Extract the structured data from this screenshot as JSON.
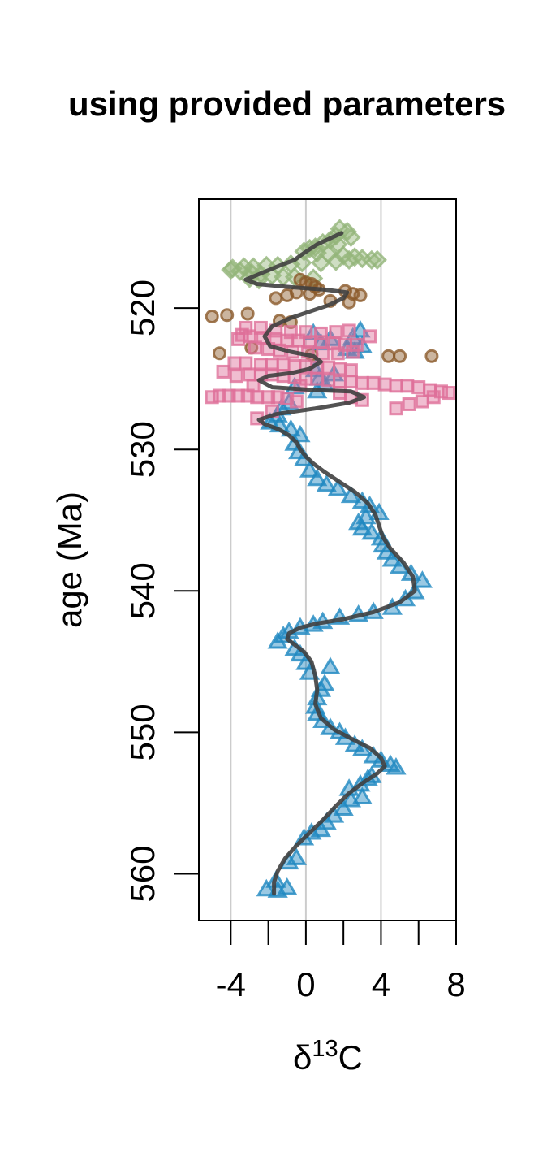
{
  "chart_data": {
    "type": "scatter",
    "title": "using provided parameters",
    "xlabel": {
      "prefix": "δ",
      "sup": "13",
      "suffix": "C"
    },
    "ylabel": "age (Ma)",
    "xlim": [
      -5.7,
      8
    ],
    "ylim": [
      512.3,
      563.3
    ],
    "y_reversed": true,
    "xticks": [
      -4,
      -2,
      0,
      2,
      4,
      6,
      8
    ],
    "xtick_labels": [
      "-4",
      "",
      "0",
      "",
      "4",
      "",
      "8"
    ],
    "yticks": [
      520,
      530,
      540,
      550,
      560
    ],
    "ytick_labels": [
      "520",
      "530",
      "540",
      "550",
      "560"
    ],
    "grid": {
      "vertical_at": [
        -4,
        0,
        4
      ],
      "color": "#cccccc"
    },
    "legend": "none",
    "series": [
      {
        "marker": "diamond",
        "color": "#94b57b",
        "points": [
          [
            1.8,
            514.4
          ],
          [
            2.2,
            514.6
          ],
          [
            1.6,
            514.9
          ],
          [
            2.4,
            515.0
          ],
          [
            1.3,
            515.2
          ],
          [
            0.9,
            515.4
          ],
          [
            1.7,
            515.5
          ],
          [
            0.5,
            515.7
          ],
          [
            0.2,
            515.8
          ],
          [
            -0.1,
            516.0
          ],
          [
            0.6,
            516.1
          ],
          [
            1.2,
            516.2
          ],
          [
            2.0,
            516.3
          ],
          [
            2.6,
            516.4
          ],
          [
            3.0,
            516.5
          ],
          [
            3.5,
            516.6
          ],
          [
            2.3,
            516.6
          ],
          [
            1.6,
            516.7
          ],
          [
            0.8,
            516.8
          ],
          [
            -0.2,
            516.8
          ],
          [
            -0.8,
            516.9
          ],
          [
            -1.5,
            517.0
          ],
          [
            -2.1,
            517.0
          ],
          [
            -2.8,
            517.1
          ],
          [
            -3.3,
            517.1
          ],
          [
            -3.9,
            517.2
          ],
          [
            -4.0,
            517.3
          ],
          [
            -3.5,
            517.4
          ],
          [
            -2.9,
            517.5
          ],
          [
            -2.4,
            517.6
          ],
          [
            -1.8,
            517.7
          ],
          [
            -1.2,
            517.8
          ],
          [
            -0.6,
            517.8
          ],
          [
            0.4,
            517.9
          ],
          [
            3.8,
            516.6
          ],
          [
            -3.0,
            517.9
          ],
          [
            -2.5,
            518.0
          ]
        ]
      },
      {
        "marker": "circle",
        "color": "#8b5a2b",
        "points": [
          [
            -0.3,
            518.0
          ],
          [
            0.0,
            518.2
          ],
          [
            0.3,
            518.3
          ],
          [
            0.5,
            518.5
          ],
          [
            0.7,
            518.7
          ],
          [
            -0.5,
            518.9
          ],
          [
            0.2,
            519.0
          ],
          [
            2.1,
            518.8
          ],
          [
            2.5,
            519.0
          ],
          [
            2.9,
            519.1
          ],
          [
            -1.6,
            519.3
          ],
          [
            -1.0,
            519.1
          ],
          [
            1.3,
            519.5
          ],
          [
            2.3,
            519.6
          ],
          [
            -5.0,
            520.6
          ],
          [
            -4.2,
            520.5
          ],
          [
            -3.1,
            520.4
          ],
          [
            -1.4,
            520.9
          ],
          [
            -0.8,
            521.0
          ],
          [
            -4.6,
            523.2
          ],
          [
            0.3,
            523.3
          ],
          [
            4.4,
            523.4
          ],
          [
            5.0,
            523.4
          ],
          [
            6.7,
            523.4
          ],
          [
            -2.9,
            522.8
          ]
        ]
      },
      {
        "marker": "triangle",
        "color": "#1f88c0",
        "points": [
          [
            -1.5,
            561.2
          ],
          [
            -2.1,
            561.1
          ],
          [
            -1.0,
            561.0
          ],
          [
            -1.6,
            560.5
          ],
          [
            -0.9,
            559.2
          ],
          [
            -0.5,
            558.9
          ],
          [
            -0.1,
            557.5
          ],
          [
            0.3,
            557.1
          ],
          [
            0.8,
            556.9
          ],
          [
            1.1,
            556.4
          ],
          [
            1.5,
            555.9
          ],
          [
            2.0,
            555.4
          ],
          [
            2.4,
            554.8
          ],
          [
            3.0,
            554.6
          ],
          [
            2.3,
            554.0
          ],
          [
            2.9,
            553.7
          ],
          [
            3.3,
            553.3
          ],
          [
            3.5,
            553.1
          ],
          [
            4.5,
            552.3
          ],
          [
            4.8,
            552.5
          ],
          [
            4.0,
            552.0
          ],
          [
            3.6,
            551.7
          ],
          [
            3.0,
            551.2
          ],
          [
            2.6,
            550.9
          ],
          [
            2.1,
            550.4
          ],
          [
            1.8,
            550.0
          ],
          [
            1.3,
            549.7
          ],
          [
            0.9,
            549.2
          ],
          [
            0.6,
            548.7
          ],
          [
            0.5,
            548.2
          ],
          [
            0.6,
            547.6
          ],
          [
            0.8,
            547.0
          ],
          [
            1.0,
            546.6
          ],
          [
            1.3,
            545.4
          ],
          [
            0.2,
            545.8
          ],
          [
            0.0,
            545.1
          ],
          [
            -0.3,
            544.5
          ],
          [
            -0.6,
            544.1
          ],
          [
            -1.5,
            543.6
          ],
          [
            -1.2,
            543.2
          ],
          [
            -0.9,
            542.9
          ],
          [
            -0.3,
            542.6
          ],
          [
            0.4,
            542.4
          ],
          [
            0.9,
            542.2
          ],
          [
            1.8,
            541.9
          ],
          [
            2.8,
            541.7
          ],
          [
            3.6,
            541.5
          ],
          [
            4.6,
            541.2
          ],
          [
            5.3,
            540.6
          ],
          [
            5.8,
            540.1
          ],
          [
            6.2,
            539.3
          ],
          [
            5.6,
            538.8
          ],
          [
            5.0,
            538.3
          ],
          [
            4.6,
            537.8
          ],
          [
            4.3,
            537.3
          ],
          [
            4.1,
            536.8
          ],
          [
            4.0,
            536.3
          ],
          [
            3.5,
            535.9
          ],
          [
            3.0,
            535.6
          ],
          [
            2.8,
            535.2
          ],
          [
            3.2,
            534.8
          ],
          [
            3.9,
            534.5
          ],
          [
            3.4,
            534.0
          ],
          [
            3.0,
            533.7
          ],
          [
            2.4,
            533.3
          ],
          [
            1.7,
            532.8
          ],
          [
            1.1,
            532.5
          ],
          [
            0.6,
            532.1
          ],
          [
            0.2,
            531.5
          ],
          [
            -0.1,
            530.7
          ],
          [
            -0.4,
            530.2
          ],
          [
            -0.6,
            529.6
          ],
          [
            -0.3,
            529.0
          ],
          [
            -0.8,
            528.6
          ],
          [
            -1.4,
            528.3
          ],
          [
            -1.9,
            528.1
          ],
          [
            -1.5,
            527.6
          ],
          [
            -1.3,
            527.1
          ],
          [
            -0.9,
            526.7
          ],
          [
            0.6,
            525.9
          ],
          [
            1.0,
            525.4
          ],
          [
            0.7,
            525.0
          ],
          [
            -0.6,
            525.6
          ],
          [
            1.5,
            524.7
          ],
          [
            0.5,
            524.4
          ],
          [
            2.2,
            522.9
          ],
          [
            2.6,
            523.1
          ],
          [
            3.0,
            522.7
          ],
          [
            2.9,
            521.6
          ],
          [
            2.5,
            522.1
          ],
          [
            0.4,
            521.8
          ],
          [
            1.3,
            522.2
          ],
          [
            0.8,
            522.5
          ]
        ]
      },
      {
        "marker": "square",
        "color": "#de6f99",
        "points": [
          [
            -4.6,
            526.2
          ],
          [
            -4.1,
            526.2
          ],
          [
            -3.6,
            526.2
          ],
          [
            -3.1,
            526.2
          ],
          [
            -2.6,
            526.3
          ],
          [
            -2.0,
            526.3
          ],
          [
            -1.5,
            526.3
          ],
          [
            -1.0,
            526.4
          ],
          [
            -3.7,
            524.8
          ],
          [
            -3.0,
            524.7
          ],
          [
            -2.4,
            524.7
          ],
          [
            -1.8,
            524.7
          ],
          [
            -1.2,
            524.8
          ],
          [
            -0.6,
            524.9
          ],
          [
            0.0,
            525.0
          ],
          [
            0.6,
            525.0
          ],
          [
            1.2,
            525.1
          ],
          [
            1.8,
            525.2
          ],
          [
            2.4,
            525.2
          ],
          [
            3.0,
            525.3
          ],
          [
            3.6,
            525.3
          ],
          [
            4.2,
            525.4
          ],
          [
            4.8,
            525.5
          ],
          [
            5.4,
            525.5
          ],
          [
            6.0,
            525.6
          ],
          [
            6.6,
            525.8
          ],
          [
            7.2,
            525.9
          ],
          [
            7.6,
            526.0
          ],
          [
            6.8,
            526.3
          ],
          [
            6.2,
            526.6
          ],
          [
            5.5,
            526.8
          ],
          [
            4.8,
            527.1
          ],
          [
            -3.8,
            523.9
          ],
          [
            -3.2,
            523.9
          ],
          [
            -2.4,
            524.0
          ],
          [
            -1.8,
            524.0
          ],
          [
            -1.2,
            524.0
          ],
          [
            -0.6,
            524.1
          ],
          [
            0.0,
            524.1
          ],
          [
            0.6,
            524.2
          ],
          [
            1.2,
            524.2
          ],
          [
            1.8,
            524.3
          ],
          [
            2.4,
            524.4
          ],
          [
            -3.6,
            522.2
          ],
          [
            -3.0,
            522.0
          ],
          [
            -2.3,
            522.1
          ],
          [
            -1.6,
            522.2
          ],
          [
            -1.0,
            522.3
          ],
          [
            -0.4,
            522.3
          ],
          [
            0.2,
            522.4
          ],
          [
            0.8,
            522.4
          ],
          [
            1.5,
            522.5
          ],
          [
            2.1,
            522.6
          ],
          [
            2.7,
            522.6
          ],
          [
            -3.4,
            521.9
          ],
          [
            -2.7,
            522.8
          ],
          [
            -2.0,
            522.9
          ],
          [
            -1.4,
            523.0
          ],
          [
            -0.7,
            523.1
          ],
          [
            0.1,
            523.1
          ],
          [
            0.9,
            523.2
          ],
          [
            1.7,
            523.2
          ],
          [
            2.5,
            523.1
          ],
          [
            -3.2,
            521.4
          ],
          [
            -2.4,
            521.4
          ],
          [
            -1.6,
            521.6
          ],
          [
            -0.8,
            521.7
          ],
          [
            0.0,
            521.7
          ],
          [
            0.8,
            521.8
          ],
          [
            1.6,
            521.7
          ],
          [
            2.3,
            521.6
          ],
          [
            3.4,
            522.0
          ],
          [
            3.0,
            526.5
          ],
          [
            2.4,
            526.3
          ],
          [
            1.8,
            526.0
          ],
          [
            -0.5,
            526.6
          ],
          [
            -1.8,
            527.3
          ],
          [
            -2.6,
            527.8
          ],
          [
            -4.4,
            524.5
          ],
          [
            -2.8,
            525.5
          ],
          [
            -0.3,
            525.5
          ],
          [
            -5.0,
            526.3
          ]
        ]
      }
    ],
    "fit_line": {
      "color": "#404040",
      "points": [
        [
          1.9,
          514.7
        ],
        [
          0.6,
          515.5
        ],
        [
          -0.2,
          516.2
        ],
        [
          -0.6,
          516.6
        ],
        [
          -1.4,
          517.0
        ],
        [
          -2.3,
          517.5
        ],
        [
          -3.2,
          518.0
        ],
        [
          -2.6,
          518.3
        ],
        [
          -1.0,
          518.5
        ],
        [
          1.0,
          518.7
        ],
        [
          2.2,
          518.9
        ],
        [
          2.0,
          519.3
        ],
        [
          1.2,
          519.8
        ],
        [
          0.3,
          520.2
        ],
        [
          -0.8,
          520.7
        ],
        [
          -1.8,
          521.3
        ],
        [
          -2.2,
          522.0
        ],
        [
          -1.9,
          522.7
        ],
        [
          -0.8,
          523.1
        ],
        [
          0.4,
          523.4
        ],
        [
          0.8,
          523.8
        ],
        [
          0.2,
          524.3
        ],
        [
          -0.8,
          524.6
        ],
        [
          -2.0,
          524.8
        ],
        [
          -2.5,
          525.1
        ],
        [
          -1.8,
          525.6
        ],
        [
          0.5,
          525.8
        ],
        [
          2.4,
          525.9
        ],
        [
          3.1,
          526.3
        ],
        [
          2.3,
          526.7
        ],
        [
          0.5,
          527.1
        ],
        [
          -1.6,
          527.5
        ],
        [
          -2.5,
          527.9
        ],
        [
          -2.2,
          528.2
        ],
        [
          -1.4,
          528.6
        ],
        [
          -0.9,
          529.0
        ],
        [
          -0.5,
          529.5
        ],
        [
          -0.3,
          530.0
        ],
        [
          0.0,
          530.5
        ],
        [
          0.4,
          531.0
        ],
        [
          1.0,
          531.6
        ],
        [
          1.8,
          532.3
        ],
        [
          2.6,
          533.0
        ],
        [
          3.3,
          533.8
        ],
        [
          3.7,
          534.6
        ],
        [
          3.9,
          535.4
        ],
        [
          4.1,
          536.2
        ],
        [
          4.5,
          537.0
        ],
        [
          5.2,
          538.0
        ],
        [
          5.7,
          539.0
        ],
        [
          5.8,
          540.0
        ],
        [
          5.0,
          540.8
        ],
        [
          3.6,
          541.5
        ],
        [
          2.0,
          542.0
        ],
        [
          0.6,
          542.3
        ],
        [
          -0.3,
          542.6
        ],
        [
          -0.9,
          543.0
        ],
        [
          -1.0,
          543.4
        ],
        [
          -0.6,
          543.8
        ],
        [
          -0.1,
          544.3
        ],
        [
          0.3,
          545.0
        ],
        [
          0.5,
          546.0
        ],
        [
          0.6,
          547.0
        ],
        [
          0.5,
          548.0
        ],
        [
          0.8,
          549.0
        ],
        [
          1.5,
          549.8
        ],
        [
          2.5,
          550.5
        ],
        [
          3.4,
          551.1
        ],
        [
          4.0,
          551.8
        ],
        [
          4.2,
          552.4
        ],
        [
          3.8,
          552.9
        ],
        [
          3.0,
          553.6
        ],
        [
          2.3,
          554.3
        ],
        [
          1.6,
          555.2
        ],
        [
          0.9,
          556.2
        ],
        [
          0.2,
          557.1
        ],
        [
          -0.5,
          558.0
        ],
        [
          -1.1,
          558.9
        ],
        [
          -1.5,
          559.8
        ],
        [
          -1.7,
          560.6
        ],
        [
          -1.7,
          561.4
        ]
      ]
    }
  }
}
